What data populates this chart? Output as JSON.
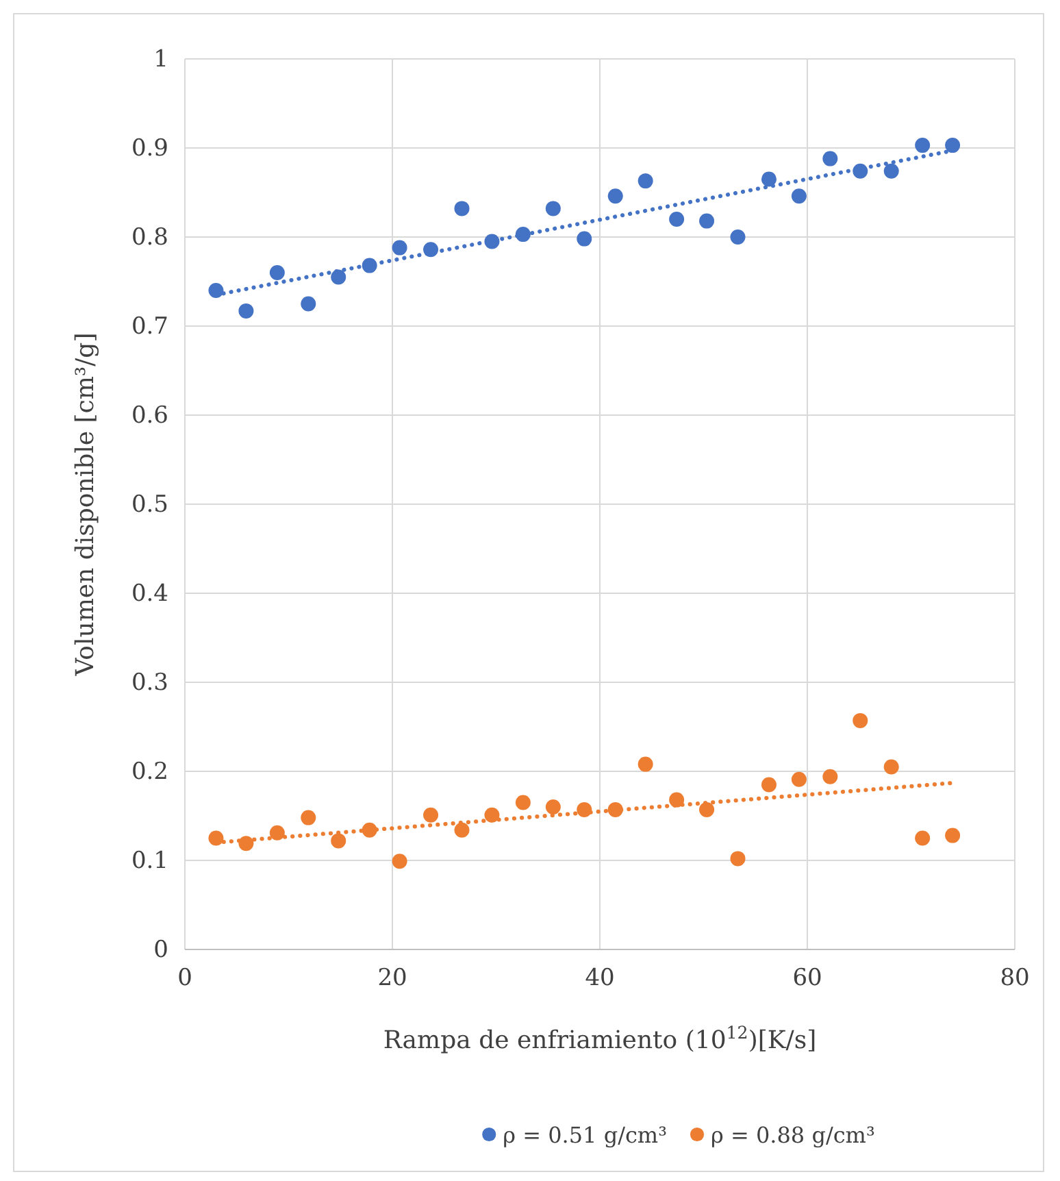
{
  "chart_data": {
    "type": "scatter",
    "xlabel": "Rampa de enfriamiento  (10$^{12}$)[K/s]",
    "ylabel": "Volumen disponible [cm³/g]",
    "xlim": [
      0,
      80
    ],
    "xticks": [
      0,
      20,
      40,
      60,
      80
    ],
    "ylim": [
      0,
      1
    ],
    "yticks": [
      0,
      0.1,
      0.2,
      0.3,
      0.4,
      0.5,
      0.6,
      0.7,
      0.8,
      0.9,
      1
    ],
    "grid": true,
    "legend": "bottom",
    "marker": "circle",
    "series": [
      {
        "name": "ρ = 0.51 g/cm³",
        "color": "#4472c4",
        "x": [
          3,
          5.9,
          8.9,
          11.9,
          14.8,
          17.8,
          20.7,
          23.7,
          26.7,
          29.6,
          32.6,
          35.5,
          38.5,
          41.5,
          44.4,
          47.4,
          50.3,
          53.3,
          56.3,
          59.2,
          62.2,
          65.1,
          68.1,
          71.1,
          74
        ],
        "values": [
          0.74,
          0.717,
          0.76,
          0.725,
          0.755,
          0.768,
          0.788,
          0.786,
          0.832,
          0.795,
          0.803,
          0.832,
          0.798,
          0.846,
          0.863,
          0.82,
          0.818,
          0.8,
          0.865,
          0.846,
          0.888,
          0.874,
          0.874,
          0.903,
          0.903
        ]
      },
      {
        "name": "ρ = 0.88 g/cm³",
        "color": "#ed7d31",
        "x": [
          3,
          5.9,
          8.9,
          11.9,
          14.8,
          17.8,
          20.7,
          23.7,
          26.7,
          29.6,
          32.6,
          35.5,
          38.5,
          41.5,
          44.4,
          47.4,
          50.3,
          53.3,
          56.3,
          59.2,
          62.2,
          65.1,
          68.1,
          71.1,
          74
        ],
        "values": [
          0.125,
          0.119,
          0.131,
          0.148,
          0.122,
          0.134,
          0.099,
          0.151,
          0.134,
          0.151,
          0.165,
          0.16,
          0.157,
          0.157,
          0.208,
          0.168,
          0.157,
          0.102,
          0.185,
          0.191,
          0.194,
          0.257,
          0.205,
          0.125,
          0.128
        ]
      },
      {
        "type": "line",
        "line_style": "dotted",
        "marker": "none",
        "color": "#4472c4",
        "x": [
          3,
          74
        ],
        "values": [
          0.735,
          0.897
        ]
      },
      {
        "type": "line",
        "line_style": "dotted",
        "marker": "none",
        "color": "#ed7d31",
        "x": [
          3,
          74
        ],
        "values": [
          0.12,
          0.187
        ]
      }
    ]
  }
}
